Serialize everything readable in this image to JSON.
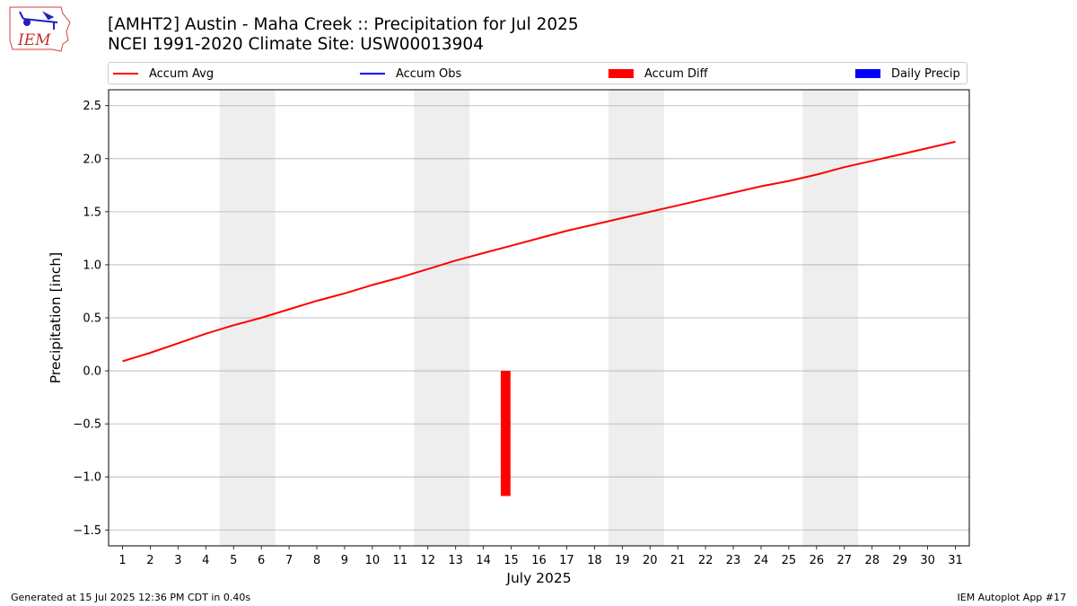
{
  "title_line1": "[AMHT2] Austin - Maha Creek :: Precipitation for Jul 2025",
  "title_line2": "NCEI 1991-2020 Climate Site: USW00013904",
  "logo": {
    "text": "IEM"
  },
  "legend": [
    {
      "label": "Accum Avg",
      "kind": "line",
      "color": "#ff0000"
    },
    {
      "label": "Accum Obs",
      "kind": "line",
      "color": "#0000ff"
    },
    {
      "label": "Accum Diff",
      "kind": "box",
      "color": "#ff0000"
    },
    {
      "label": "Daily Precip",
      "kind": "box",
      "color": "#0000ff"
    }
  ],
  "footer_left": "Generated at 15 Jul 2025 12:36 PM CDT in 0.40s",
  "footer_right": "IEM Autoplot App #17",
  "chart_data": {
    "type": "line",
    "xlabel": "July 2025",
    "ylabel": "Precipitation [inch]",
    "x": [
      1,
      2,
      3,
      4,
      5,
      6,
      7,
      8,
      9,
      10,
      11,
      12,
      13,
      14,
      15,
      16,
      17,
      18,
      19,
      20,
      21,
      22,
      23,
      24,
      25,
      26,
      27,
      28,
      29,
      30,
      31
    ],
    "xlim": [
      0.5,
      31.5
    ],
    "ylim": [
      -1.65,
      2.65
    ],
    "yticks": [
      -1.5,
      -1.0,
      -0.5,
      0.0,
      0.5,
      1.0,
      1.5,
      2.0,
      2.5
    ],
    "ytick_labels": [
      "−1.5",
      "−1.0",
      "−0.5",
      "0.0",
      "0.5",
      "1.0",
      "1.5",
      "2.0",
      "2.5"
    ],
    "grid": "horizontal",
    "weekend_bands": [
      [
        4.5,
        6.5
      ],
      [
        11.5,
        13.5
      ],
      [
        18.5,
        20.5
      ],
      [
        25.5,
        27.5
      ]
    ],
    "series": [
      {
        "name": "Accum Avg",
        "type": "line",
        "color": "#ff0000",
        "values": [
          0.09,
          0.17,
          0.26,
          0.35,
          0.43,
          0.5,
          0.58,
          0.66,
          0.73,
          0.81,
          0.88,
          0.96,
          1.04,
          1.11,
          1.18,
          1.25,
          1.32,
          1.38,
          1.44,
          1.5,
          1.56,
          1.62,
          1.68,
          1.74,
          1.79,
          1.85,
          1.92,
          1.98,
          2.04,
          2.1,
          2.16
        ]
      },
      {
        "name": "Accum Diff",
        "type": "bar",
        "color": "#ff0000",
        "x": [
          14.8
        ],
        "values": [
          -1.18
        ],
        "bar_width": 0.35
      }
    ]
  }
}
